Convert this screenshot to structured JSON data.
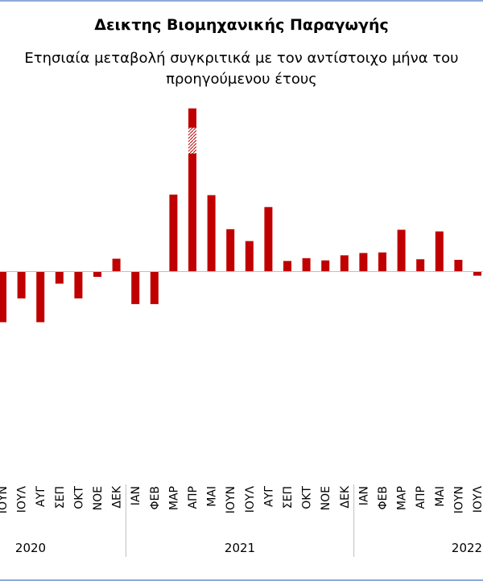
{
  "chart_data": {
    "type": "bar",
    "title": "Δεικτης Βιομηχανικής Παραγωγής",
    "subtitle_line1": "Ετησιαία μεταβολή συγκριτικά με τον αντίστοιχο μήνα του",
    "subtitle_line2": "προηγούμενου έτους",
    "categories": [
      "ΙΟΥΝ",
      "ΙΟΥΛ",
      "ΑΥΓ",
      "ΣΕΠ",
      "ΟΚΤ",
      "ΝΟΕ",
      "ΔΕΚ",
      "ΙΑΝ",
      "ΦΕΒ",
      "ΜΑΡ",
      "ΑΠΡ",
      "ΜΑΙ",
      "ΙΟΥΝ",
      "ΙΟΥΛ",
      "ΑΥΓ",
      "ΣΕΠ",
      "ΟΚΤ",
      "ΝΟΕ",
      "ΔΕΚ",
      "ΙΑΝ",
      "ΦΕΒ",
      "ΜΑΡ",
      "ΑΠΡ",
      "ΜΑΙ",
      "ΙΟΥΝ",
      "ΙΟΥΛ"
    ],
    "years": [
      {
        "label": "2020",
        "count": 7
      },
      {
        "label": "2021",
        "count": 12
      },
      {
        "label": "2022",
        "count": 7
      }
    ],
    "series": [
      {
        "values": [
          -9.0,
          -4.8,
          -9.0,
          -2.2,
          -4.8,
          -1.0,
          2.2,
          -5.8,
          -5.8,
          13.5,
          28.7,
          13.4,
          7.4,
          5.3,
          11.3,
          1.8,
          2.3,
          1.9,
          2.8,
          3.2,
          3.3,
          7.3,
          2.1,
          7.0,
          2.0,
          -0.8
        ],
        "color": "#c00000"
      }
    ],
    "axis_break": {
      "category": "ΑΠΡ",
      "year": "2021"
    },
    "ylim": [
      -27,
      30
    ],
    "xlabel": "",
    "ylabel": "",
    "grid": false,
    "legend": "none"
  }
}
